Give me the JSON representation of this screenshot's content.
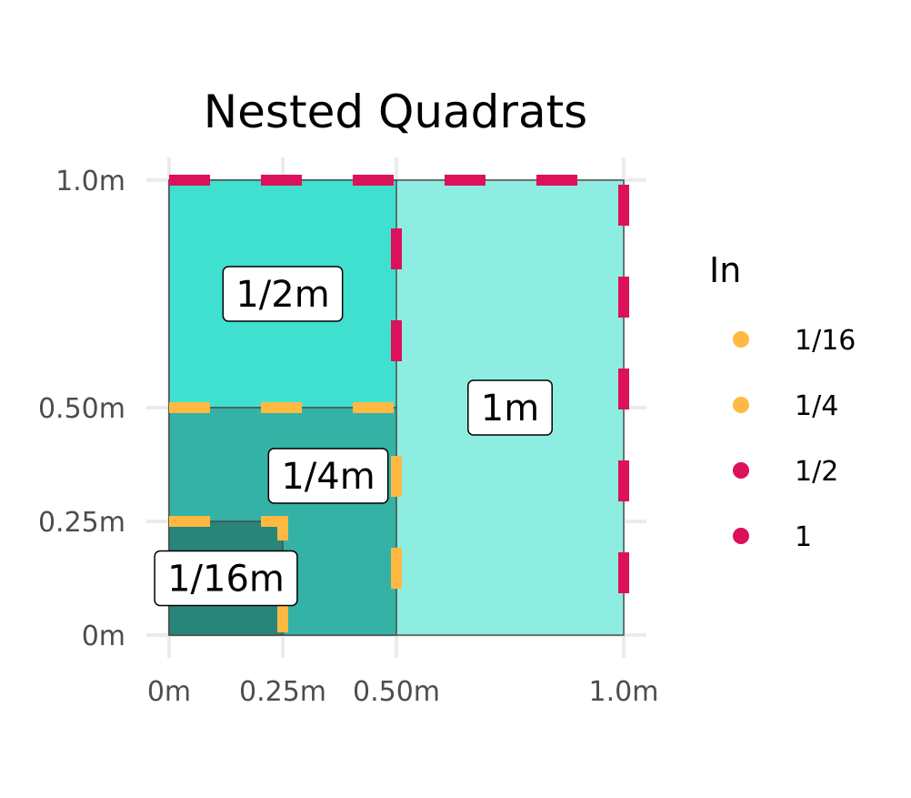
{
  "chart_data": {
    "type": "rect",
    "title": "Nested Quadrats",
    "xlim": [
      0,
      1
    ],
    "ylim": [
      0,
      1
    ],
    "x_ticks": [
      {
        "value": 0,
        "label": "0m"
      },
      {
        "value": 0.25,
        "label": "0.25m"
      },
      {
        "value": 0.5,
        "label": "0.50m"
      },
      {
        "value": 1,
        "label": "1.0m"
      }
    ],
    "y_ticks": [
      {
        "value": 0,
        "label": "0m"
      },
      {
        "value": 0.25,
        "label": "0.25m"
      },
      {
        "value": 0.5,
        "label": "0.50m"
      },
      {
        "value": 1,
        "label": "1.0m"
      }
    ],
    "grid": true,
    "quadrats": [
      {
        "label": "1m",
        "xmin": 0,
        "xmax": 1,
        "ymin": 0,
        "ymax": 1,
        "fill": "#8EEDE1",
        "label_x": 0.75,
        "label_y": 0.5
      },
      {
        "label": "1/2m",
        "xmin": 0,
        "xmax": 0.5,
        "ymin": 0.5,
        "ymax": 1,
        "fill": "#40E0D0",
        "label_x": 0.25,
        "label_y": 0.75
      },
      {
        "label": "1/4m",
        "xmin": 0,
        "xmax": 0.5,
        "ymin": 0,
        "ymax": 0.5,
        "fill": "#33B2A5",
        "label_x": 0.35,
        "label_y": 0.35
      },
      {
        "label": "1/16m",
        "xmin": 0,
        "xmax": 0.25,
        "ymin": 0,
        "ymax": 0.25,
        "fill": "#288579",
        "label_x": 0.125,
        "label_y": 0.125
      }
    ],
    "borders": [
      {
        "group": "1",
        "color": "#DC1159",
        "points": [
          [
            0,
            1
          ],
          [
            1,
            1
          ],
          [
            1,
            0
          ]
        ]
      },
      {
        "group": "1/2",
        "color": "#DC1159",
        "points": [
          [
            0,
            1
          ],
          [
            0.5,
            1
          ],
          [
            0.5,
            0.5
          ]
        ]
      },
      {
        "group": "1/4",
        "color": "#FFB942",
        "points": [
          [
            0,
            0.5
          ],
          [
            0.5,
            0.5
          ],
          [
            0.5,
            0
          ]
        ]
      },
      {
        "group": "1/16",
        "color": "#FFB942",
        "points": [
          [
            0,
            0.25
          ],
          [
            0.25,
            0.25
          ],
          [
            0.25,
            0
          ]
        ]
      }
    ],
    "legend": {
      "title": "In",
      "position": "right",
      "entries": [
        {
          "label": "1/16",
          "color": "#FFB942"
        },
        {
          "label": "1/4",
          "color": "#FFB942"
        },
        {
          "label": "1/2",
          "color": "#DC1159"
        },
        {
          "label": "1",
          "color": "#DC1159"
        }
      ]
    }
  }
}
